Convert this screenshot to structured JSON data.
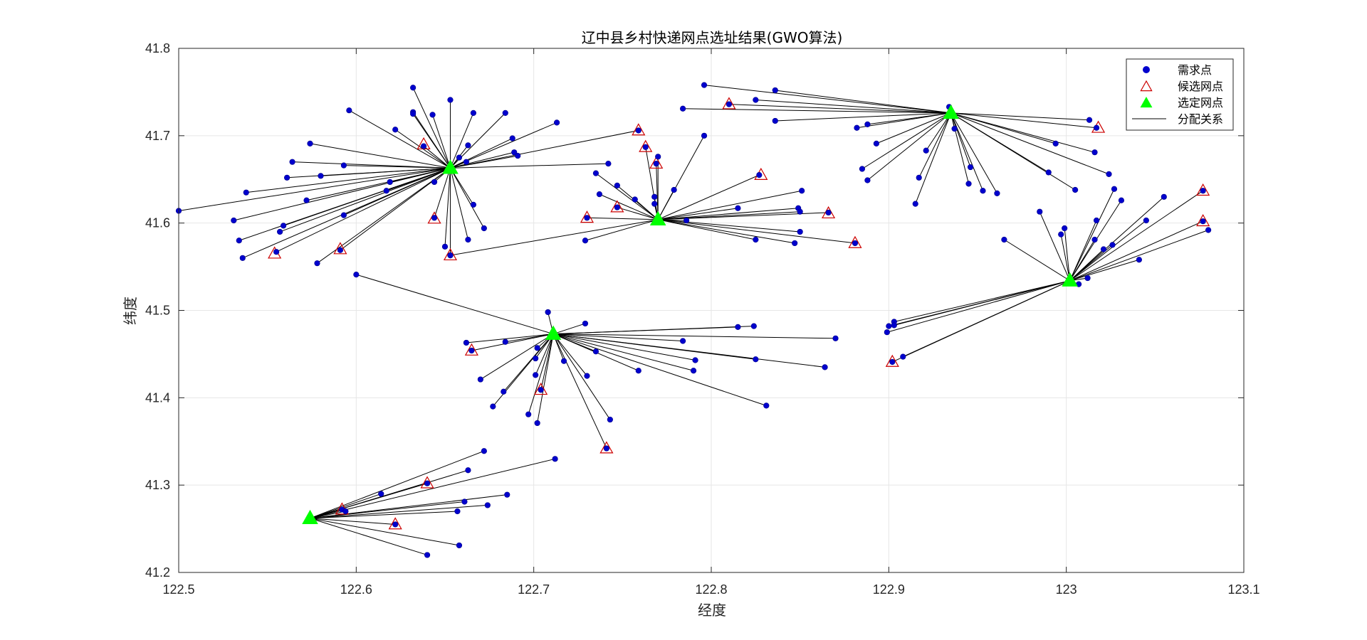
{
  "chart_data": {
    "type": "scatter",
    "title": "辽中县乡村快递网点选址结果(GWO算法)",
    "xlabel": "经度",
    "ylabel": "纬度",
    "xlim": [
      122.5,
      123.1
    ],
    "ylim": [
      41.2,
      41.8
    ],
    "xticks": [
      "122.5",
      "122.6",
      "122.7",
      "122.8",
      "122.9",
      "123",
      "123.1"
    ],
    "yticks": [
      "41.2",
      "41.3",
      "41.4",
      "41.5",
      "41.6",
      "41.7",
      "41.8"
    ],
    "grid": true,
    "legend_position": "top-right",
    "colors": {
      "demand": "#0000cd",
      "candidate": "#cc0000",
      "selected": "#00ff00",
      "assignment": "#000000",
      "grid": "#e6e6e6",
      "axis": "#262626"
    },
    "legend": [
      {
        "key": "demand",
        "label": "需求点"
      },
      {
        "key": "candidate",
        "label": "候选网点"
      },
      {
        "key": "selected",
        "label": "选定网点"
      },
      {
        "key": "assignment",
        "label": "分配关系"
      }
    ],
    "selected_sites": [
      {
        "id": "S1",
        "x": 122.653,
        "y": 41.663
      },
      {
        "id": "S2",
        "x": 122.77,
        "y": 41.604
      },
      {
        "id": "S3",
        "x": 122.935,
        "y": 41.726
      },
      {
        "id": "S4",
        "x": 123.002,
        "y": 41.534
      },
      {
        "id": "S5",
        "x": 122.711,
        "y": 41.473
      },
      {
        "id": "S6",
        "x": 122.574,
        "y": 41.262
      }
    ],
    "candidate_sites": [
      [
        122.554,
        41.565
      ],
      [
        122.591,
        41.57
      ],
      [
        122.644,
        41.605
      ],
      [
        122.653,
        41.563
      ],
      [
        122.638,
        41.69
      ],
      [
        122.73,
        41.606
      ],
      [
        122.747,
        41.618
      ],
      [
        122.759,
        41.706
      ],
      [
        122.763,
        41.687
      ],
      [
        122.769,
        41.668
      ],
      [
        122.828,
        41.655
      ],
      [
        122.866,
        41.611
      ],
      [
        122.881,
        41.577
      ],
      [
        122.81,
        41.736
      ],
      [
        123.018,
        41.709
      ],
      [
        123.077,
        41.637
      ],
      [
        123.077,
        41.602
      ],
      [
        122.665,
        41.454
      ],
      [
        122.704,
        41.409
      ],
      [
        122.741,
        41.342
      ],
      [
        122.902,
        41.441
      ],
      [
        122.592,
        41.272
      ],
      [
        122.64,
        41.302
      ],
      [
        122.622,
        41.255
      ]
    ],
    "demand_points": [
      {
        "x": 122.5,
        "y": 41.614,
        "site": "S1"
      },
      {
        "x": 122.531,
        "y": 41.603,
        "site": "S1"
      },
      {
        "x": 122.534,
        "y": 41.58,
        "site": "S1"
      },
      {
        "x": 122.536,
        "y": 41.56,
        "site": "S1"
      },
      {
        "x": 122.538,
        "y": 41.635,
        "site": "S1"
      },
      {
        "x": 122.555,
        "y": 41.567,
        "site": "S1"
      },
      {
        "x": 122.557,
        "y": 41.59,
        "site": "S1"
      },
      {
        "x": 122.559,
        "y": 41.597,
        "site": "S1"
      },
      {
        "x": 122.561,
        "y": 41.652,
        "site": "S1"
      },
      {
        "x": 122.564,
        "y": 41.67,
        "site": "S1"
      },
      {
        "x": 122.572,
        "y": 41.626,
        "site": "S1"
      },
      {
        "x": 122.574,
        "y": 41.691,
        "site": "S1"
      },
      {
        "x": 122.578,
        "y": 41.554,
        "site": "S1"
      },
      {
        "x": 122.58,
        "y": 41.654,
        "site": "S1"
      },
      {
        "x": 122.591,
        "y": 41.569,
        "site": "S1"
      },
      {
        "x": 122.593,
        "y": 41.609,
        "site": "S1"
      },
      {
        "x": 122.593,
        "y": 41.666,
        "site": "S1"
      },
      {
        "x": 122.596,
        "y": 41.729,
        "site": "S1"
      },
      {
        "x": 122.617,
        "y": 41.637,
        "site": "S1"
      },
      {
        "x": 122.619,
        "y": 41.647,
        "site": "S1"
      },
      {
        "x": 122.622,
        "y": 41.707,
        "site": "S1"
      },
      {
        "x": 122.632,
        "y": 41.755,
        "site": "S1"
      },
      {
        "x": 122.632,
        "y": 41.727,
        "site": "S1"
      },
      {
        "x": 122.632,
        "y": 41.725,
        "site": "S1"
      },
      {
        "x": 122.638,
        "y": 41.688,
        "site": "S1"
      },
      {
        "x": 122.644,
        "y": 41.647,
        "site": "S1"
      },
      {
        "x": 122.644,
        "y": 41.606,
        "site": "S1"
      },
      {
        "x": 122.643,
        "y": 41.724,
        "site": "S1"
      },
      {
        "x": 122.65,
        "y": 41.573,
        "site": "S1"
      },
      {
        "x": 122.653,
        "y": 41.741,
        "site": "S1"
      },
      {
        "x": 122.653,
        "y": 41.563,
        "site": "S1"
      },
      {
        "x": 122.658,
        "y": 41.675,
        "site": "S1"
      },
      {
        "x": 122.662,
        "y": 41.67,
        "site": "S1"
      },
      {
        "x": 122.663,
        "y": 41.689,
        "site": "S1"
      },
      {
        "x": 122.663,
        "y": 41.581,
        "site": "S1"
      },
      {
        "x": 122.666,
        "y": 41.621,
        "site": "S1"
      },
      {
        "x": 122.666,
        "y": 41.726,
        "site": "S1"
      },
      {
        "x": 122.672,
        "y": 41.594,
        "site": "S1"
      },
      {
        "x": 122.684,
        "y": 41.726,
        "site": "S1"
      },
      {
        "x": 122.688,
        "y": 41.697,
        "site": "S1"
      },
      {
        "x": 122.689,
        "y": 41.681,
        "site": "S1"
      },
      {
        "x": 122.691,
        "y": 41.677,
        "site": "S1"
      },
      {
        "x": 122.713,
        "y": 41.715,
        "site": "S1"
      },
      {
        "x": 122.742,
        "y": 41.668,
        "site": "S1"
      },
      {
        "x": 122.759,
        "y": 41.706,
        "site": "S1"
      },
      {
        "x": 122.653,
        "y": 41.563,
        "site": "S2"
      },
      {
        "x": 122.729,
        "y": 41.58,
        "site": "S2"
      },
      {
        "x": 122.73,
        "y": 41.606,
        "site": "S2"
      },
      {
        "x": 122.735,
        "y": 41.657,
        "site": "S2"
      },
      {
        "x": 122.737,
        "y": 41.633,
        "site": "S2"
      },
      {
        "x": 122.747,
        "y": 41.643,
        "site": "S2"
      },
      {
        "x": 122.747,
        "y": 41.618,
        "site": "S2"
      },
      {
        "x": 122.757,
        "y": 41.627,
        "site": "S2"
      },
      {
        "x": 122.763,
        "y": 41.687,
        "site": "S2"
      },
      {
        "x": 122.769,
        "y": 41.668,
        "site": "S2"
      },
      {
        "x": 122.768,
        "y": 41.63,
        "site": "S2"
      },
      {
        "x": 122.768,
        "y": 41.622,
        "site": "S2"
      },
      {
        "x": 122.77,
        "y": 41.676,
        "site": "S2"
      },
      {
        "x": 122.779,
        "y": 41.638,
        "site": "S2"
      },
      {
        "x": 122.786,
        "y": 41.603,
        "site": "S2"
      },
      {
        "x": 122.796,
        "y": 41.7,
        "site": "S2"
      },
      {
        "x": 122.815,
        "y": 41.617,
        "site": "S2"
      },
      {
        "x": 122.825,
        "y": 41.581,
        "site": "S2"
      },
      {
        "x": 122.827,
        "y": 41.655,
        "site": "S2"
      },
      {
        "x": 122.847,
        "y": 41.577,
        "site": "S2"
      },
      {
        "x": 122.849,
        "y": 41.617,
        "site": "S2"
      },
      {
        "x": 122.85,
        "y": 41.613,
        "site": "S2"
      },
      {
        "x": 122.85,
        "y": 41.59,
        "site": "S2"
      },
      {
        "x": 122.851,
        "y": 41.637,
        "site": "S2"
      },
      {
        "x": 122.866,
        "y": 41.612,
        "site": "S2"
      },
      {
        "x": 122.881,
        "y": 41.577,
        "site": "S2"
      },
      {
        "x": 122.784,
        "y": 41.731,
        "site": "S3"
      },
      {
        "x": 122.796,
        "y": 41.758,
        "site": "S3"
      },
      {
        "x": 122.81,
        "y": 41.736,
        "site": "S3"
      },
      {
        "x": 122.825,
        "y": 41.741,
        "site": "S3"
      },
      {
        "x": 122.836,
        "y": 41.752,
        "site": "S3"
      },
      {
        "x": 122.836,
        "y": 41.717,
        "site": "S3"
      },
      {
        "x": 122.882,
        "y": 41.709,
        "site": "S3"
      },
      {
        "x": 122.885,
        "y": 41.662,
        "site": "S3"
      },
      {
        "x": 122.888,
        "y": 41.649,
        "site": "S3"
      },
      {
        "x": 122.888,
        "y": 41.713,
        "site": "S3"
      },
      {
        "x": 122.893,
        "y": 41.691,
        "site": "S3"
      },
      {
        "x": 122.915,
        "y": 41.622,
        "site": "S3"
      },
      {
        "x": 122.917,
        "y": 41.652,
        "site": "S3"
      },
      {
        "x": 122.921,
        "y": 41.683,
        "site": "S3"
      },
      {
        "x": 122.934,
        "y": 41.733,
        "site": "S3"
      },
      {
        "x": 122.937,
        "y": 41.708,
        "site": "S3"
      },
      {
        "x": 122.945,
        "y": 41.645,
        "site": "S3"
      },
      {
        "x": 122.946,
        "y": 41.664,
        "site": "S3"
      },
      {
        "x": 122.953,
        "y": 41.637,
        "site": "S3"
      },
      {
        "x": 122.961,
        "y": 41.634,
        "site": "S3"
      },
      {
        "x": 122.99,
        "y": 41.658,
        "site": "S3"
      },
      {
        "x": 122.994,
        "y": 41.691,
        "site": "S3"
      },
      {
        "x": 123.005,
        "y": 41.638,
        "site": "S3"
      },
      {
        "x": 123.013,
        "y": 41.718,
        "site": "S3"
      },
      {
        "x": 123.017,
        "y": 41.709,
        "site": "S3"
      },
      {
        "x": 123.016,
        "y": 41.681,
        "site": "S3"
      },
      {
        "x": 123.024,
        "y": 41.656,
        "site": "S3"
      },
      {
        "x": 122.899,
        "y": 41.475,
        "site": "S4"
      },
      {
        "x": 122.9,
        "y": 41.482,
        "site": "S4"
      },
      {
        "x": 122.903,
        "y": 41.487,
        "site": "S4"
      },
      {
        "x": 122.903,
        "y": 41.483,
        "site": "S4"
      },
      {
        "x": 122.902,
        "y": 41.441,
        "site": "S4"
      },
      {
        "x": 122.908,
        "y": 41.447,
        "site": "S4"
      },
      {
        "x": 122.965,
        "y": 41.581,
        "site": "S4"
      },
      {
        "x": 122.985,
        "y": 41.613,
        "site": "S4"
      },
      {
        "x": 122.997,
        "y": 41.587,
        "site": "S4"
      },
      {
        "x": 122.999,
        "y": 41.594,
        "site": "S4"
      },
      {
        "x": 123.007,
        "y": 41.53,
        "site": "S4"
      },
      {
        "x": 123.012,
        "y": 41.537,
        "site": "S4"
      },
      {
        "x": 123.016,
        "y": 41.581,
        "site": "S4"
      },
      {
        "x": 123.017,
        "y": 41.603,
        "site": "S4"
      },
      {
        "x": 123.021,
        "y": 41.57,
        "site": "S4"
      },
      {
        "x": 123.026,
        "y": 41.575,
        "site": "S4"
      },
      {
        "x": 123.027,
        "y": 41.639,
        "site": "S4"
      },
      {
        "x": 123.031,
        "y": 41.626,
        "site": "S4"
      },
      {
        "x": 123.041,
        "y": 41.558,
        "site": "S4"
      },
      {
        "x": 123.045,
        "y": 41.603,
        "site": "S4"
      },
      {
        "x": 123.055,
        "y": 41.63,
        "site": "S4"
      },
      {
        "x": 123.077,
        "y": 41.637,
        "site": "S4"
      },
      {
        "x": 123.077,
        "y": 41.602,
        "site": "S4"
      },
      {
        "x": 123.08,
        "y": 41.592,
        "site": "S4"
      },
      {
        "x": 122.6,
        "y": 41.541,
        "site": "S5"
      },
      {
        "x": 122.662,
        "y": 41.463,
        "site": "S5"
      },
      {
        "x": 122.665,
        "y": 41.454,
        "site": "S5"
      },
      {
        "x": 122.67,
        "y": 41.421,
        "site": "S5"
      },
      {
        "x": 122.677,
        "y": 41.39,
        "site": "S5"
      },
      {
        "x": 122.683,
        "y": 41.407,
        "site": "S5"
      },
      {
        "x": 122.684,
        "y": 41.464,
        "site": "S5"
      },
      {
        "x": 122.697,
        "y": 41.381,
        "site": "S5"
      },
      {
        "x": 122.701,
        "y": 41.426,
        "site": "S5"
      },
      {
        "x": 122.701,
        "y": 41.445,
        "site": "S5"
      },
      {
        "x": 122.702,
        "y": 41.457,
        "site": "S5"
      },
      {
        "x": 122.702,
        "y": 41.371,
        "site": "S5"
      },
      {
        "x": 122.704,
        "y": 41.409,
        "site": "S5"
      },
      {
        "x": 122.708,
        "y": 41.498,
        "site": "S5"
      },
      {
        "x": 122.717,
        "y": 41.442,
        "site": "S5"
      },
      {
        "x": 122.729,
        "y": 41.485,
        "site": "S5"
      },
      {
        "x": 122.73,
        "y": 41.425,
        "site": "S5"
      },
      {
        "x": 122.735,
        "y": 41.453,
        "site": "S5"
      },
      {
        "x": 122.741,
        "y": 41.342,
        "site": "S5"
      },
      {
        "x": 122.743,
        "y": 41.375,
        "site": "S5"
      },
      {
        "x": 122.759,
        "y": 41.431,
        "site": "S5"
      },
      {
        "x": 122.784,
        "y": 41.465,
        "site": "S5"
      },
      {
        "x": 122.79,
        "y": 41.431,
        "site": "S5"
      },
      {
        "x": 122.791,
        "y": 41.443,
        "site": "S5"
      },
      {
        "x": 122.815,
        "y": 41.481,
        "site": "S5"
      },
      {
        "x": 122.824,
        "y": 41.482,
        "site": "S5"
      },
      {
        "x": 122.825,
        "y": 41.444,
        "site": "S5"
      },
      {
        "x": 122.831,
        "y": 41.391,
        "site": "S5"
      },
      {
        "x": 122.864,
        "y": 41.435,
        "site": "S5"
      },
      {
        "x": 122.87,
        "y": 41.468,
        "site": "S5"
      },
      {
        "x": 122.592,
        "y": 41.272,
        "site": "S6"
      },
      {
        "x": 122.594,
        "y": 41.27,
        "site": "S6"
      },
      {
        "x": 122.614,
        "y": 41.29,
        "site": "S6"
      },
      {
        "x": 122.622,
        "y": 41.255,
        "site": "S6"
      },
      {
        "x": 122.64,
        "y": 41.302,
        "site": "S6"
      },
      {
        "x": 122.64,
        "y": 41.22,
        "site": "S6"
      },
      {
        "x": 122.657,
        "y": 41.27,
        "site": "S6"
      },
      {
        "x": 122.658,
        "y": 41.231,
        "site": "S6"
      },
      {
        "x": 122.661,
        "y": 41.281,
        "site": "S6"
      },
      {
        "x": 122.663,
        "y": 41.317,
        "site": "S6"
      },
      {
        "x": 122.672,
        "y": 41.339,
        "site": "S6"
      },
      {
        "x": 122.674,
        "y": 41.277,
        "site": "S6"
      },
      {
        "x": 122.685,
        "y": 41.289,
        "site": "S6"
      },
      {
        "x": 122.712,
        "y": 41.33,
        "site": "S6"
      }
    ]
  }
}
